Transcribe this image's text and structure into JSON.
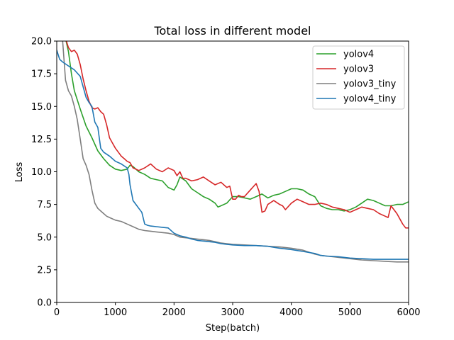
{
  "chart_data": {
    "type": "line",
    "title": "Total loss in different model",
    "xlabel": "Step(batch)",
    "ylabel": "Loss",
    "xlim": [
      0,
      6000
    ],
    "ylim": [
      0,
      20
    ],
    "xticks": [
      0,
      1000,
      2000,
      3000,
      4000,
      5000,
      6000
    ],
    "xtick_labels": [
      "0",
      "1000",
      "2000",
      "3000",
      "4000",
      "5000",
      "6000"
    ],
    "yticks": [
      0,
      2.5,
      5,
      7.5,
      10,
      12.5,
      15,
      17.5,
      20
    ],
    "ytick_labels": [
      "0.0",
      "2.5",
      "5.0",
      "7.5",
      "10.0",
      "12.5",
      "15.0",
      "17.5",
      "20.0"
    ],
    "grid": false,
    "legend": "upper-right",
    "series": [
      {
        "name": "yolov4",
        "color": "#2ca02c",
        "x": [
          150,
          200,
          250,
          300,
          400,
          500,
          600,
          700,
          800,
          900,
          1000,
          1100,
          1200,
          1250,
          1300,
          1400,
          1500,
          1600,
          1700,
          1800,
          1900,
          2000,
          2050,
          2100,
          2200,
          2300,
          2400,
          2500,
          2600,
          2700,
          2750,
          2800,
          2900,
          3000,
          3100,
          3200,
          3300,
          3400,
          3500,
          3600,
          3700,
          3800,
          3900,
          4000,
          4100,
          4200,
          4300,
          4400,
          4500,
          4600,
          4700,
          4800,
          4900,
          5000,
          5100,
          5200,
          5300,
          5400,
          5500,
          5600,
          5700,
          5800,
          5900,
          6000
        ],
        "values": [
          20.2,
          19.2,
          17.5,
          16.2,
          14.8,
          13.5,
          12.6,
          11.6,
          11.0,
          10.5,
          10.2,
          10.1,
          10.2,
          10.5,
          10.4,
          10.0,
          9.8,
          9.5,
          9.4,
          9.3,
          8.8,
          8.6,
          9.0,
          9.6,
          9.3,
          8.7,
          8.4,
          8.1,
          7.9,
          7.6,
          7.3,
          7.4,
          7.6,
          8.1,
          8.1,
          8.0,
          7.9,
          8.1,
          8.3,
          8.0,
          8.2,
          8.3,
          8.5,
          8.7,
          8.7,
          8.6,
          8.3,
          8.1,
          7.4,
          7.2,
          7.1,
          7.1,
          7.0,
          7.1,
          7.3,
          7.6,
          7.9,
          7.8,
          7.6,
          7.4,
          7.4,
          7.5,
          7.5,
          7.7
        ]
      },
      {
        "name": "yolov3",
        "color": "#d62728",
        "x": [
          150,
          200,
          250,
          300,
          350,
          400,
          450,
          500,
          550,
          600,
          650,
          700,
          750,
          800,
          850,
          900,
          950,
          1000,
          1050,
          1100,
          1150,
          1200,
          1250,
          1300,
          1400,
          1500,
          1600,
          1700,
          1800,
          1900,
          2000,
          2050,
          2100,
          2150,
          2200,
          2300,
          2400,
          2500,
          2600,
          2700,
          2800,
          2900,
          2950,
          3000,
          3050,
          3100,
          3150,
          3200,
          3300,
          3400,
          3450,
          3500,
          3550,
          3600,
          3700,
          3800,
          3850,
          3900,
          4000,
          4100,
          4200,
          4300,
          4400,
          4500,
          4600,
          4700,
          4800,
          4900,
          5000,
          5100,
          5200,
          5300,
          5400,
          5500,
          5600,
          5650,
          5700,
          5800,
          5900,
          5950,
          6000
        ],
        "values": [
          20.2,
          19.5,
          19.2,
          19.3,
          19.0,
          18.2,
          17.1,
          16.2,
          15.4,
          14.9,
          14.8,
          14.9,
          14.6,
          14.4,
          13.6,
          12.6,
          12.2,
          11.8,
          11.5,
          11.2,
          11.0,
          10.8,
          10.7,
          10.3,
          10.1,
          10.3,
          10.6,
          10.2,
          10.0,
          10.3,
          10.1,
          9.7,
          10.0,
          9.5,
          9.5,
          9.3,
          9.4,
          9.6,
          9.3,
          9.0,
          9.2,
          8.8,
          8.9,
          7.9,
          7.9,
          8.2,
          8.1,
          8.1,
          8.6,
          9.1,
          8.5,
          6.9,
          7.0,
          7.5,
          7.8,
          7.5,
          7.4,
          7.1,
          7.6,
          7.9,
          7.7,
          7.5,
          7.5,
          7.6,
          7.5,
          7.3,
          7.2,
          7.1,
          6.9,
          7.1,
          7.3,
          7.2,
          7.1,
          6.8,
          6.6,
          6.5,
          7.4,
          6.8,
          6.0,
          5.7,
          5.7
        ]
      },
      {
        "name": "yolov3_tiny",
        "color": "#7f7f7f",
        "x": [
          0,
          50,
          100,
          150,
          200,
          250,
          300,
          350,
          400,
          450,
          500,
          550,
          600,
          650,
          700,
          750,
          800,
          850,
          900,
          1000,
          1100,
          1200,
          1300,
          1400,
          1500,
          1600,
          1700,
          1800,
          1900,
          2000,
          2100,
          2200,
          2300,
          2400,
          2500,
          2600,
          2700,
          2800,
          2900,
          3000,
          3200,
          3400,
          3600,
          3800,
          4000,
          4200,
          4400,
          4500,
          4600,
          4800,
          5000,
          5200,
          5400,
          5600,
          5800,
          6000
        ],
        "values": [
          21.0,
          20.5,
          20.0,
          17.0,
          16.2,
          15.8,
          15.0,
          14.0,
          12.5,
          11.0,
          10.5,
          9.8,
          8.6,
          7.6,
          7.2,
          7.0,
          6.8,
          6.6,
          6.5,
          6.3,
          6.2,
          6.0,
          5.8,
          5.6,
          5.5,
          5.45,
          5.4,
          5.35,
          5.3,
          5.2,
          5.0,
          4.95,
          4.9,
          4.85,
          4.8,
          4.75,
          4.65,
          4.55,
          4.5,
          4.45,
          4.4,
          4.35,
          4.3,
          4.25,
          4.15,
          4.0,
          3.7,
          3.6,
          3.55,
          3.45,
          3.35,
          3.25,
          3.2,
          3.15,
          3.1,
          3.1
        ]
      },
      {
        "name": "yolov4_tiny",
        "color": "#1f77b4",
        "x": [
          0,
          50,
          100,
          200,
          300,
          400,
          500,
          550,
          600,
          650,
          700,
          750,
          800,
          900,
          1000,
          1100,
          1200,
          1230,
          1250,
          1300,
          1350,
          1400,
          1450,
          1500,
          1550,
          1600,
          1700,
          1800,
          1900,
          2000,
          2100,
          2200,
          2300,
          2400,
          2500,
          2600,
          2700,
          2800,
          2900,
          3000,
          3200,
          3400,
          3600,
          3800,
          4000,
          4200,
          4400,
          4500,
          4600,
          4800,
          5000,
          5200,
          5400,
          5600,
          5800,
          6000
        ],
        "values": [
          19.3,
          18.6,
          18.4,
          18.1,
          17.8,
          17.3,
          15.7,
          15.3,
          15.0,
          13.8,
          13.4,
          11.8,
          11.5,
          11.2,
          10.8,
          10.6,
          10.3,
          9.8,
          9.0,
          7.8,
          7.5,
          7.2,
          6.9,
          6.0,
          5.9,
          5.85,
          5.8,
          5.75,
          5.7,
          5.3,
          5.1,
          5.0,
          4.85,
          4.75,
          4.7,
          4.65,
          4.6,
          4.5,
          4.45,
          4.4,
          4.35,
          4.35,
          4.3,
          4.15,
          4.05,
          3.9,
          3.75,
          3.6,
          3.55,
          3.5,
          3.4,
          3.35,
          3.3,
          3.3,
          3.3,
          3.3
        ]
      }
    ]
  }
}
